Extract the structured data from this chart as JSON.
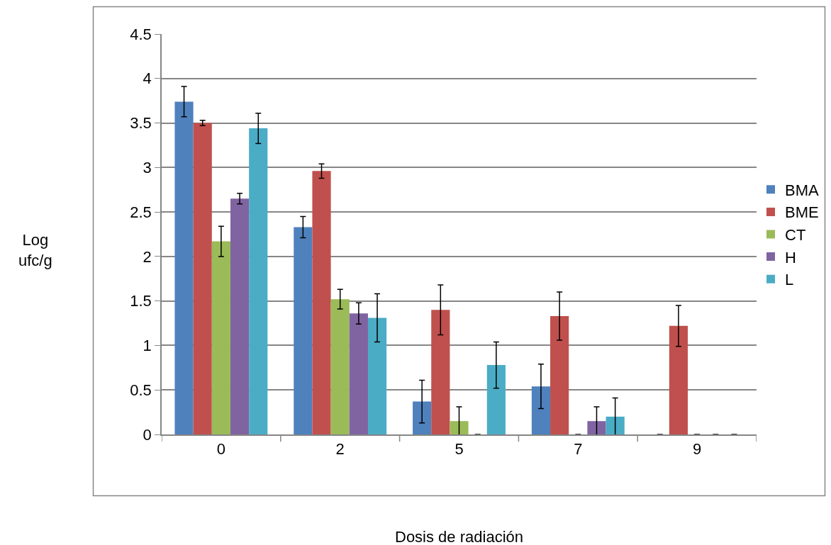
{
  "chart_data": {
    "type": "bar",
    "xlabel": "Dosis de radiación",
    "ylabel": "Log\nufc/g",
    "categories": [
      "0",
      "2",
      "5",
      "7",
      "9"
    ],
    "series": [
      {
        "name": "BMA",
        "color": "#4f81bd",
        "values": [
          3.74,
          2.33,
          0.37,
          0.54,
          0
        ],
        "errors": [
          0.17,
          0.12,
          0.24,
          0.25,
          null
        ]
      },
      {
        "name": "BME",
        "color": "#c0504d",
        "values": [
          3.5,
          2.96,
          1.4,
          1.33,
          1.22
        ],
        "errors": [
          0.03,
          0.08,
          0.28,
          0.27,
          0.23
        ]
      },
      {
        "name": "CT",
        "color": "#9bbb59",
        "values": [
          2.17,
          1.52,
          0.15,
          0,
          0
        ],
        "errors": [
          0.17,
          0.11,
          0.16,
          null,
          null
        ]
      },
      {
        "name": "H",
        "color": "#8064a2",
        "values": [
          2.65,
          1.36,
          0,
          0.15,
          0
        ],
        "errors": [
          0.06,
          0.12,
          null,
          0.16,
          null
        ]
      },
      {
        "name": "L",
        "color": "#4bacc6",
        "values": [
          3.44,
          1.31,
          0.78,
          0.2,
          0
        ],
        "errors": [
          0.17,
          0.27,
          0.26,
          0.21,
          null
        ]
      }
    ],
    "ylim": [
      0,
      4.5
    ],
    "yticks": [
      0,
      0.5,
      1,
      1.5,
      2,
      2.5,
      3,
      3.5,
      4,
      4.5
    ],
    "grid": "y",
    "legend": "right"
  }
}
